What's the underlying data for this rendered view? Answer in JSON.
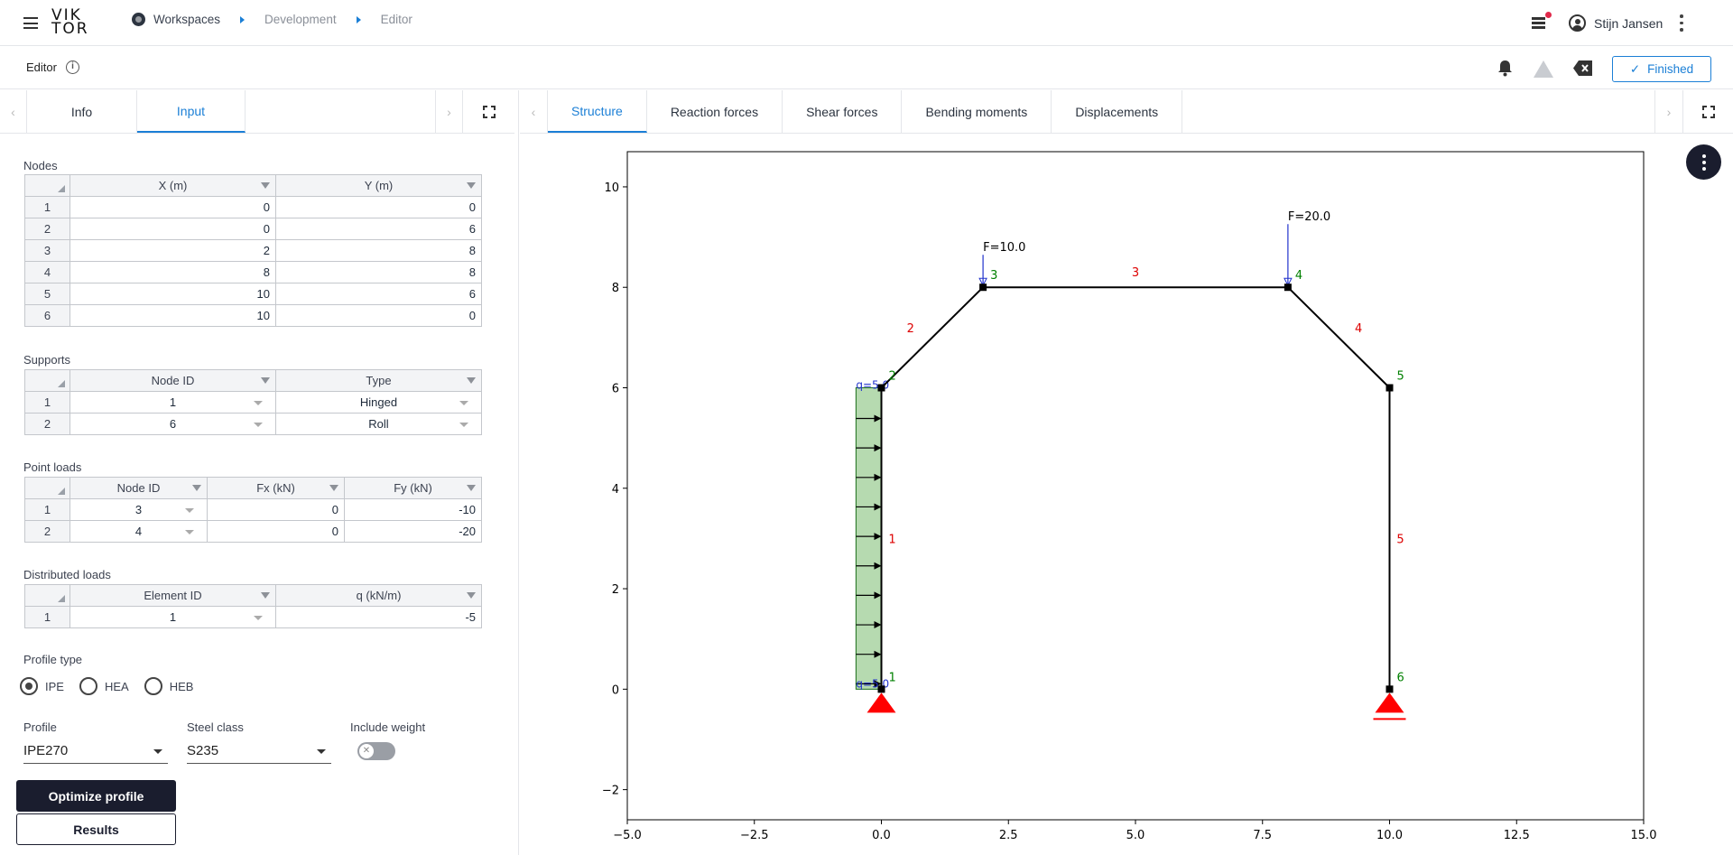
{
  "header": {
    "logo_line1": "VIK",
    "logo_line2": "TOR",
    "breadcrumbs": [
      "Workspaces",
      "Development",
      "Editor"
    ],
    "user_name": "Stijn Jansen"
  },
  "subbar": {
    "title": "Editor",
    "status_label": "Finished"
  },
  "left_tabs": [
    "Info",
    "Input"
  ],
  "nodes": {
    "label": "Nodes",
    "columns": [
      "X (m)",
      "Y (m)"
    ],
    "rows": [
      {
        "n": "1",
        "x": "0",
        "y": "0"
      },
      {
        "n": "2",
        "x": "0",
        "y": "6"
      },
      {
        "n": "3",
        "x": "2",
        "y": "8"
      },
      {
        "n": "4",
        "x": "8",
        "y": "8"
      },
      {
        "n": "5",
        "x": "10",
        "y": "6"
      },
      {
        "n": "6",
        "x": "10",
        "y": "0"
      }
    ]
  },
  "supports": {
    "label": "Supports",
    "columns": [
      "Node ID",
      "Type"
    ],
    "rows": [
      {
        "n": "1",
        "node": "1",
        "type": "Hinged"
      },
      {
        "n": "2",
        "node": "6",
        "type": "Roll"
      }
    ]
  },
  "point_loads": {
    "label": "Point loads",
    "columns": [
      "Node ID",
      "Fx (kN)",
      "Fy (kN)"
    ],
    "rows": [
      {
        "n": "1",
        "node": "3",
        "fx": "0",
        "fy": "-10"
      },
      {
        "n": "2",
        "node": "4",
        "fx": "0",
        "fy": "-20"
      }
    ]
  },
  "distributed_loads": {
    "label": "Distributed loads",
    "columns": [
      "Element ID",
      "q (kN/m)"
    ],
    "rows": [
      {
        "n": "1",
        "element": "1",
        "q": "-5"
      }
    ]
  },
  "profile_type": {
    "label": "Profile type",
    "options": [
      "IPE",
      "HEA",
      "HEB"
    ],
    "selected": "IPE"
  },
  "profile": {
    "label": "Profile",
    "value": "IPE270"
  },
  "steel_class": {
    "label": "Steel class",
    "value": "S235"
  },
  "include_weight": {
    "label": "Include weight",
    "on": false
  },
  "buttons": {
    "optimize": "Optimize profile",
    "results": "Results"
  },
  "right_tabs": [
    "Structure",
    "Reaction forces",
    "Shear forces",
    "Bending moments",
    "Displacements"
  ],
  "icons": [
    "menu-icon",
    "globe-icon",
    "stack-icon",
    "user-icon",
    "more-vert-icon",
    "info-icon",
    "bell-icon",
    "warning-icon",
    "backspace-icon",
    "check-icon",
    "fullscreen-icon",
    "chevron-left-icon",
    "chevron-right-icon"
  ],
  "colors": {
    "accent": "#1b7fd6",
    "dark": "#1a1d2e",
    "load_fill": "#b6dab0",
    "support": "#ff0000",
    "node_label": "#008000",
    "element_label": "#dd0000"
  },
  "chart_data": {
    "type": "scatter",
    "xlim": [
      -5,
      15
    ],
    "ylim": [
      -2.6,
      10.7
    ],
    "xticks": [
      "−5.0",
      "−2.5",
      "0.0",
      "2.5",
      "5.0",
      "7.5",
      "10.0",
      "12.5",
      "15.0"
    ],
    "xtick_values": [
      -5,
      -2.5,
      0,
      2.5,
      5,
      7.5,
      10,
      12.5,
      15
    ],
    "yticks": [
      "−2",
      "0",
      "2",
      "4",
      "6",
      "8",
      "10"
    ],
    "ytick_values": [
      -2,
      0,
      2,
      4,
      6,
      8,
      10
    ],
    "nodes": [
      {
        "id": "1",
        "x": 0,
        "y": 0
      },
      {
        "id": "2",
        "x": 0,
        "y": 6
      },
      {
        "id": "3",
        "x": 2,
        "y": 8
      },
      {
        "id": "4",
        "x": 8,
        "y": 8
      },
      {
        "id": "5",
        "x": 10,
        "y": 6
      },
      {
        "id": "6",
        "x": 10,
        "y": 0
      }
    ],
    "elements": [
      {
        "id": "1",
        "from": 1,
        "to": 2
      },
      {
        "id": "2",
        "from": 2,
        "to": 3
      },
      {
        "id": "3",
        "from": 3,
        "to": 4
      },
      {
        "id": "4",
        "from": 4,
        "to": 5
      },
      {
        "id": "5",
        "from": 5,
        "to": 6
      }
    ],
    "point_loads": [
      {
        "node": 3,
        "label": "F=10.0"
      },
      {
        "node": 4,
        "label": "F=20.0"
      }
    ],
    "distributed_load": {
      "element": 1,
      "label_top": "q=5.0",
      "label_bottom": "q=5.0"
    },
    "supports": [
      {
        "node": 1,
        "type": "hinged"
      },
      {
        "node": 6,
        "type": "roll"
      }
    ],
    "grid": false
  }
}
